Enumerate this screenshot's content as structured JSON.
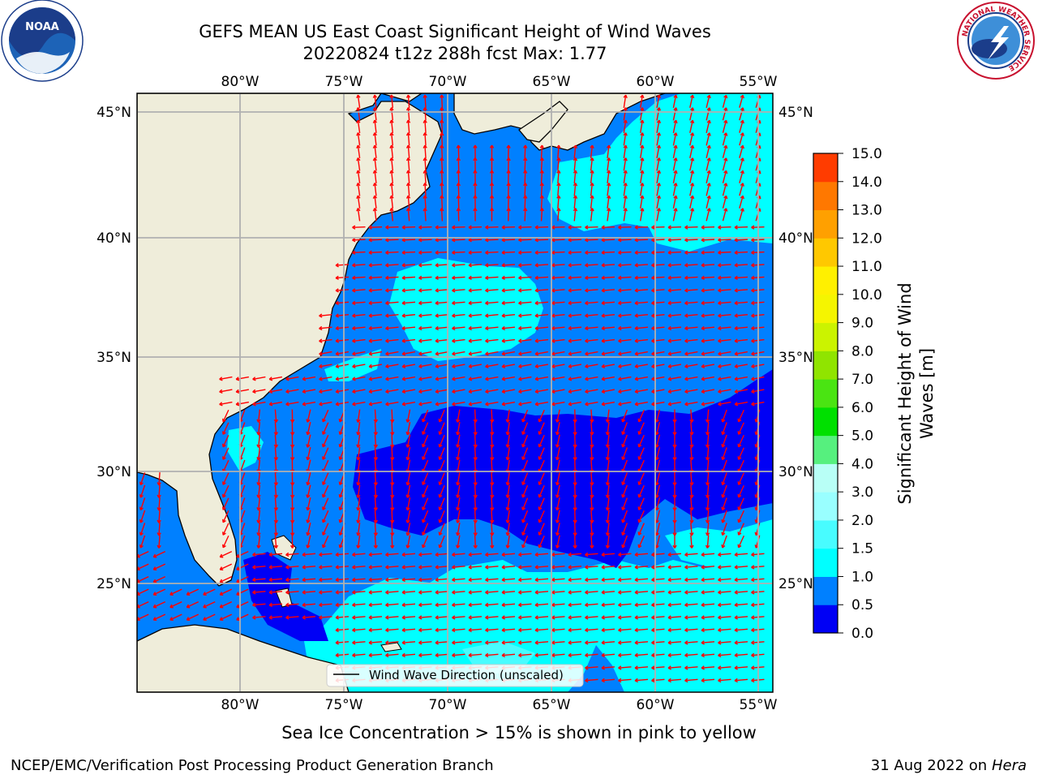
{
  "title": {
    "line1": "GEFS MEAN US East Coast Significant Height of Wind Waves",
    "line2": "20220824 t12z 288h fcst   Max: 1.77"
  },
  "map": {
    "lon_labels": [
      "80°W",
      "75°W",
      "70°W",
      "65°W",
      "60°W",
      "55°W"
    ],
    "lat_labels": [
      "45°N",
      "40°N",
      "35°N",
      "30°N",
      "25°N"
    ],
    "legend_label": "Wind Wave Direction (unscaled)",
    "arrow_color": "#ff0000",
    "land_color": "#efedda"
  },
  "colorbar": {
    "label_line1": "Significant Height of Wind",
    "label_line2": "Waves [m]",
    "ticks": [
      "0.0",
      "0.5",
      "1.0",
      "1.5",
      "2.0",
      "3.0",
      "4.0",
      "5.0",
      "6.0",
      "7.0",
      "8.0",
      "9.0",
      "10.0",
      "11.0",
      "12.0",
      "13.0",
      "14.0",
      "15.0"
    ],
    "colors": [
      "#0000f5",
      "#0080ff",
      "#00ffff",
      "#48fcff",
      "#99ffff",
      "#b8fff6",
      "#56f07e",
      "#00e000",
      "#4ae412",
      "#90e400",
      "#cbf300",
      "#f5f500",
      "#fff000",
      "#ffc800",
      "#ffa000",
      "#ff7800",
      "#ff3c00",
      "#ff0000"
    ]
  },
  "logos": {
    "noaa_text": "NOAA",
    "noaa_ring": "NATIONAL OCEANIC AND ATMOSPHERIC ADMINISTRATION · U.S. DEPARTMENT OF COMMERCE",
    "nws_ring": "NATIONAL WEATHER SERVICE"
  },
  "footer": {
    "note": "Sea Ice Concentration > 15% is shown in pink to yellow",
    "left": "NCEP/EMC/Verification Post Processing Product Generation Branch",
    "right_date": "31 Aug 2022 on",
    "right_host": "Hera"
  }
}
